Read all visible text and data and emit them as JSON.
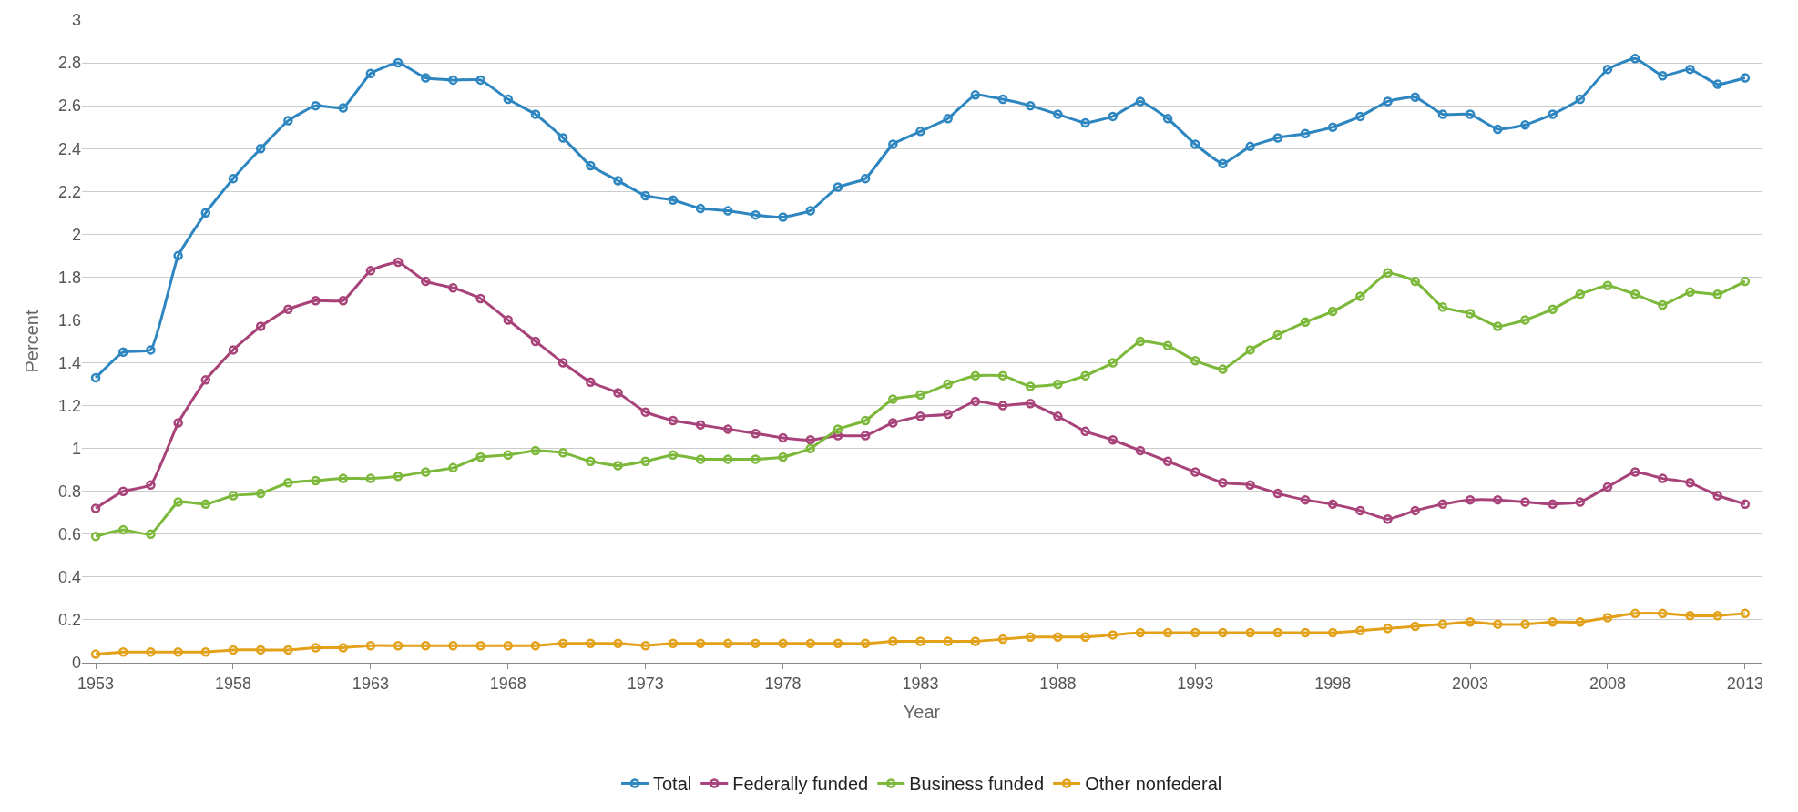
{
  "chart_data": {
    "type": "line",
    "xlabel": "Year",
    "ylabel": "Percent",
    "x": [
      1953,
      1954,
      1955,
      1956,
      1957,
      1958,
      1959,
      1960,
      1961,
      1962,
      1963,
      1964,
      1965,
      1966,
      1967,
      1968,
      1969,
      1970,
      1971,
      1972,
      1973,
      1974,
      1975,
      1976,
      1977,
      1978,
      1979,
      1980,
      1981,
      1982,
      1983,
      1984,
      1985,
      1986,
      1987,
      1988,
      1989,
      1990,
      1991,
      1992,
      1993,
      1994,
      1995,
      1996,
      1997,
      1998,
      1999,
      2000,
      2001,
      2002,
      2003,
      2004,
      2005,
      2006,
      2007,
      2008,
      2009,
      2010,
      2011,
      2012,
      2013
    ],
    "series": [
      {
        "name": "Total",
        "color": "#2e86c1",
        "values": [
          1.33,
          1.45,
          1.46,
          1.9,
          2.1,
          2.26,
          2.4,
          2.53,
          2.6,
          2.59,
          2.75,
          2.8,
          2.73,
          2.72,
          2.72,
          2.63,
          2.56,
          2.45,
          2.32,
          2.25,
          2.18,
          2.16,
          2.12,
          2.11,
          2.09,
          2.08,
          2.11,
          2.22,
          2.26,
          2.42,
          2.48,
          2.54,
          2.65,
          2.63,
          2.6,
          2.56,
          2.52,
          2.55,
          2.62,
          2.54,
          2.42,
          2.33,
          2.41,
          2.45,
          2.47,
          2.5,
          2.55,
          2.62,
          2.64,
          2.56,
          2.56,
          2.49,
          2.51,
          2.56,
          2.63,
          2.77,
          2.82,
          2.74,
          2.77,
          2.7,
          2.73
        ]
      },
      {
        "name": "Federally funded",
        "color": "#a8437a",
        "values": [
          0.72,
          0.8,
          0.83,
          1.12,
          1.32,
          1.46,
          1.57,
          1.65,
          1.69,
          1.69,
          1.83,
          1.87,
          1.78,
          1.75,
          1.7,
          1.6,
          1.5,
          1.4,
          1.31,
          1.26,
          1.17,
          1.13,
          1.11,
          1.09,
          1.07,
          1.05,
          1.04,
          1.06,
          1.06,
          1.12,
          1.15,
          1.16,
          1.22,
          1.2,
          1.21,
          1.15,
          1.08,
          1.04,
          0.99,
          0.94,
          0.89,
          0.84,
          0.83,
          0.79,
          0.76,
          0.74,
          0.71,
          0.67,
          0.71,
          0.74,
          0.76,
          0.76,
          0.75,
          0.74,
          0.75,
          0.82,
          0.89,
          0.86,
          0.84,
          0.78,
          0.74
        ]
      },
      {
        "name": "Business funded",
        "color": "#7cb83a",
        "values": [
          0.59,
          0.62,
          0.6,
          0.75,
          0.74,
          0.78,
          0.79,
          0.84,
          0.85,
          0.86,
          0.86,
          0.87,
          0.89,
          0.91,
          0.96,
          0.97,
          0.99,
          0.98,
          0.94,
          0.92,
          0.94,
          0.97,
          0.95,
          0.95,
          0.95,
          0.96,
          1.0,
          1.09,
          1.13,
          1.23,
          1.25,
          1.3,
          1.34,
          1.34,
          1.29,
          1.3,
          1.34,
          1.4,
          1.5,
          1.48,
          1.41,
          1.37,
          1.46,
          1.53,
          1.59,
          1.64,
          1.71,
          1.82,
          1.78,
          1.66,
          1.63,
          1.57,
          1.6,
          1.65,
          1.72,
          1.76,
          1.72,
          1.67,
          1.73,
          1.72,
          1.78
        ]
      },
      {
        "name": "Other nonfederal",
        "color": "#e3a11a",
        "values": [
          0.04,
          0.05,
          0.05,
          0.05,
          0.05,
          0.06,
          0.06,
          0.06,
          0.07,
          0.07,
          0.08,
          0.08,
          0.08,
          0.08,
          0.08,
          0.08,
          0.08,
          0.09,
          0.09,
          0.09,
          0.08,
          0.09,
          0.09,
          0.09,
          0.09,
          0.09,
          0.09,
          0.09,
          0.09,
          0.1,
          0.1,
          0.1,
          0.1,
          0.11,
          0.12,
          0.12,
          0.12,
          0.13,
          0.14,
          0.14,
          0.14,
          0.14,
          0.14,
          0.14,
          0.14,
          0.14,
          0.15,
          0.16,
          0.17,
          0.18,
          0.19,
          0.18,
          0.18,
          0.19,
          0.19,
          0.21,
          0.23,
          0.23,
          0.22,
          0.22,
          0.23
        ]
      }
    ],
    "xlim": [
      1952.5,
      2013.6
    ],
    "xticks": [
      1953,
      1958,
      1963,
      1968,
      1973,
      1978,
      1983,
      1988,
      1993,
      1998,
      2003,
      2008,
      2013
    ],
    "ylim": [
      0,
      3
    ],
    "yticks": [
      0,
      0.2,
      0.4,
      0.6,
      0.8,
      1,
      1.2,
      1.4,
      1.6,
      1.8,
      2,
      2.2,
      2.4,
      2.6,
      2.8,
      3
    ],
    "grid": "y",
    "legend": "bottom",
    "marker": "circle",
    "line_style": "solid"
  }
}
